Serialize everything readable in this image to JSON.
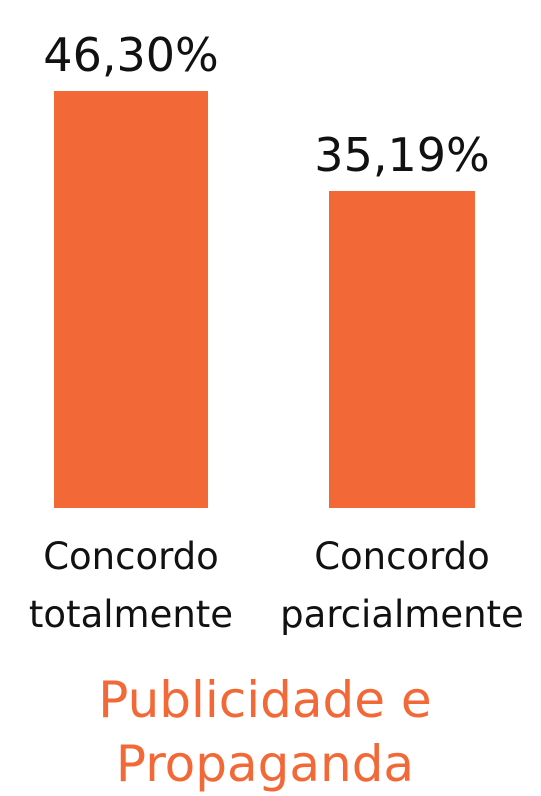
{
  "chart_data": {
    "type": "bar",
    "title": "Publicidade e Propaganda",
    "categories": [
      "Concordo totalmente",
      "Concordo parcialmente"
    ],
    "values": [
      46.3,
      35.19
    ],
    "value_labels": [
      "46,30%",
      "35,19%"
    ],
    "color": "#f26836"
  }
}
